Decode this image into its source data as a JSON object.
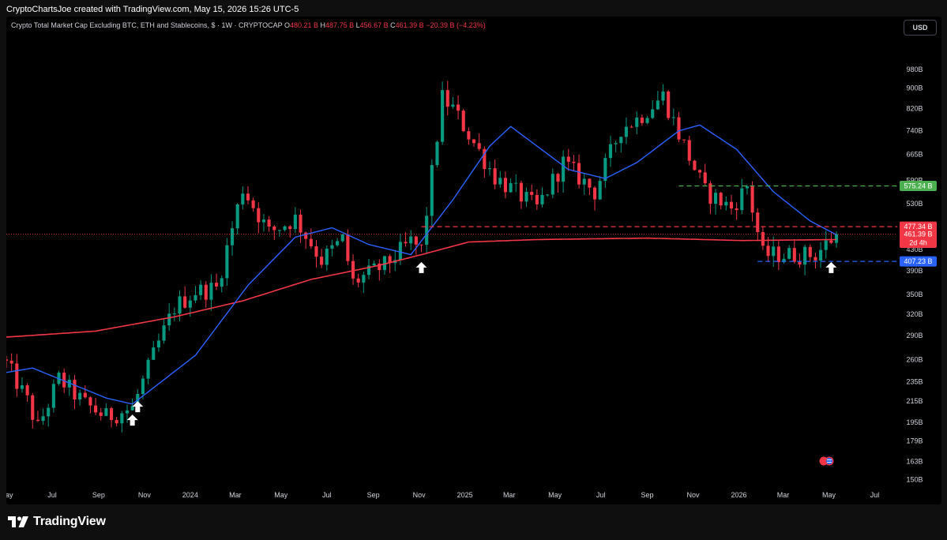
{
  "header": {
    "credit": "CryptoChartsJoe created with TradingView.com, May 15, 2026 15:26 UTC-5"
  },
  "legend": {
    "title": "Crypto Total Market Cap Excluding BTC, ETH and Stablecoins, $ · 1W · CRYPTOCAP",
    "open_label": "O",
    "open": "480.21 B",
    "high_label": "H",
    "high": "487.75 B",
    "low_label": "L",
    "low": "456.67 B",
    "close_label": "C",
    "close": "461.39 B",
    "change": "−20.39 B (−4.23%)"
  },
  "currency_button": {
    "label": "USD"
  },
  "footer": {
    "brand": "TradingView",
    "logo_icon": "tradingview-logo-icon"
  },
  "colors": {
    "up": "#089981",
    "down": "#f23645",
    "ma_fast": "#2962ff",
    "ma_slow": "#f23645",
    "green_level": "#4caf50",
    "red_level": "#f23645",
    "blue_level": "#2962ff",
    "background": "#000000",
    "frame": "#0f0f0f"
  },
  "chart_data": {
    "type": "candlestick",
    "title": "Crypto Total Market Cap Excluding BTC, ETH and Stablecoins, $ · 1W · CRYPTOCAP",
    "y_scale": "log",
    "y_unit": "B",
    "ylim": [
      145,
      1120
    ],
    "y_ticks": [
      {
        "v": 150,
        "label": "150B"
      },
      {
        "v": 163,
        "label": "163B"
      },
      {
        "v": 179,
        "label": "179B"
      },
      {
        "v": 195,
        "label": "195B"
      },
      {
        "v": 215,
        "label": "215B"
      },
      {
        "v": 235,
        "label": "235B"
      },
      {
        "v": 260,
        "label": "260B"
      },
      {
        "v": 290,
        "label": "290B"
      },
      {
        "v": 320,
        "label": "320B"
      },
      {
        "v": 350,
        "label": "350B"
      },
      {
        "v": 390,
        "label": "390B"
      },
      {
        "v": 430,
        "label": "430B"
      },
      {
        "v": 530,
        "label": "530B"
      },
      {
        "v": 590,
        "label": "590B"
      },
      {
        "v": 665,
        "label": "665B"
      },
      {
        "v": 740,
        "label": "740B"
      },
      {
        "v": 820,
        "label": "820B"
      },
      {
        "v": 900,
        "label": "900B"
      },
      {
        "v": 980,
        "label": "980B"
      }
    ],
    "x_start": "2023-05-01",
    "x_end": "2026-07-31",
    "x_ticks": [
      {
        "date": "2023-05-01",
        "label": "May"
      },
      {
        "date": "2023-07-01",
        "label": "Jul"
      },
      {
        "date": "2023-09-01",
        "label": "Sep"
      },
      {
        "date": "2023-11-01",
        "label": "Nov"
      },
      {
        "date": "2024-01-01",
        "label": "2024"
      },
      {
        "date": "2024-03-01",
        "label": "Mar"
      },
      {
        "date": "2024-05-01",
        "label": "May"
      },
      {
        "date": "2024-07-01",
        "label": "Jul"
      },
      {
        "date": "2024-09-01",
        "label": "Sep"
      },
      {
        "date": "2024-11-01",
        "label": "Nov"
      },
      {
        "date": "2025-01-01",
        "label": "2025"
      },
      {
        "date": "2025-03-01",
        "label": "Mar"
      },
      {
        "date": "2025-05-01",
        "label": "May"
      },
      {
        "date": "2025-07-01",
        "label": "Jul"
      },
      {
        "date": "2025-09-01",
        "label": "Sep"
      },
      {
        "date": "2025-11-01",
        "label": "Nov"
      },
      {
        "date": "2026-01-01",
        "label": "2026"
      },
      {
        "date": "2026-03-01",
        "label": "Mar"
      },
      {
        "date": "2026-05-01",
        "label": "May"
      },
      {
        "date": "2026-07-01",
        "label": "Jul"
      }
    ],
    "price_keypoints": [
      {
        "date": "2023-05-01",
        "close": 255
      },
      {
        "date": "2023-05-29",
        "close": 215
      },
      {
        "date": "2023-06-12",
        "close": 190
      },
      {
        "date": "2023-07-10",
        "close": 238
      },
      {
        "date": "2023-08-14",
        "close": 212
      },
      {
        "date": "2023-09-11",
        "close": 200
      },
      {
        "date": "2023-10-16",
        "close": 208
      },
      {
        "date": "2023-11-13",
        "close": 265
      },
      {
        "date": "2023-12-11",
        "close": 330
      },
      {
        "date": "2024-01-08",
        "close": 355
      },
      {
        "date": "2024-02-05",
        "close": 360
      },
      {
        "date": "2024-03-11",
        "close": 570
      },
      {
        "date": "2024-04-15",
        "close": 465
      },
      {
        "date": "2024-05-20",
        "close": 495
      },
      {
        "date": "2024-06-24",
        "close": 410
      },
      {
        "date": "2024-07-22",
        "close": 450
      },
      {
        "date": "2024-08-05",
        "close": 370
      },
      {
        "date": "2024-09-16",
        "close": 400
      },
      {
        "date": "2024-10-21",
        "close": 445
      },
      {
        "date": "2024-11-04",
        "close": 430
      },
      {
        "date": "2024-12-02",
        "close": 860
      },
      {
        "date": "2024-12-16",
        "close": 820
      },
      {
        "date": "2025-01-13",
        "close": 700
      },
      {
        "date": "2025-02-10",
        "close": 600
      },
      {
        "date": "2025-04-07",
        "close": 520
      },
      {
        "date": "2025-05-12",
        "close": 640
      },
      {
        "date": "2025-06-23",
        "close": 560
      },
      {
        "date": "2025-07-28",
        "close": 750
      },
      {
        "date": "2025-08-18",
        "close": 780
      },
      {
        "date": "2025-09-22",
        "close": 870
      },
      {
        "date": "2025-10-13",
        "close": 730
      },
      {
        "date": "2025-11-17",
        "close": 560
      },
      {
        "date": "2025-12-22",
        "close": 520
      },
      {
        "date": "2026-01-12",
        "close": 575
      },
      {
        "date": "2026-02-02",
        "close": 420
      },
      {
        "date": "2026-03-09",
        "close": 420
      },
      {
        "date": "2026-04-13",
        "close": 420
      },
      {
        "date": "2026-05-11",
        "close": 461.39
      }
    ],
    "ma_fast_keypoints": [
      {
        "date": "2023-05-01",
        "v": 245
      },
      {
        "date": "2023-06-05",
        "v": 250
      },
      {
        "date": "2023-09-11",
        "v": 218
      },
      {
        "date": "2023-10-16",
        "v": 212
      },
      {
        "date": "2024-01-08",
        "v": 265
      },
      {
        "date": "2024-03-18",
        "v": 365
      },
      {
        "date": "2024-05-20",
        "v": 455
      },
      {
        "date": "2024-07-08",
        "v": 475
      },
      {
        "date": "2024-08-26",
        "v": 440
      },
      {
        "date": "2024-10-21",
        "v": 420
      },
      {
        "date": "2024-12-16",
        "v": 540
      },
      {
        "date": "2025-02-03",
        "v": 690
      },
      {
        "date": "2025-03-03",
        "v": 755
      },
      {
        "date": "2025-04-07",
        "v": 690
      },
      {
        "date": "2025-05-19",
        "v": 620
      },
      {
        "date": "2025-07-07",
        "v": 595
      },
      {
        "date": "2025-08-18",
        "v": 640
      },
      {
        "date": "2025-10-13",
        "v": 740
      },
      {
        "date": "2025-11-10",
        "v": 760
      },
      {
        "date": "2025-12-29",
        "v": 680
      },
      {
        "date": "2026-02-16",
        "v": 560
      },
      {
        "date": "2026-04-06",
        "v": 490
      },
      {
        "date": "2026-05-11",
        "v": 460
      }
    ],
    "ma_slow_keypoints": [
      {
        "date": "2023-05-01",
        "v": 288
      },
      {
        "date": "2023-08-28",
        "v": 296
      },
      {
        "date": "2023-12-11",
        "v": 316
      },
      {
        "date": "2024-03-11",
        "v": 340
      },
      {
        "date": "2024-06-10",
        "v": 375
      },
      {
        "date": "2024-09-09",
        "v": 400
      },
      {
        "date": "2024-11-04",
        "v": 420
      },
      {
        "date": "2025-01-06",
        "v": 445
      },
      {
        "date": "2025-04-07",
        "v": 450
      },
      {
        "date": "2025-09-01",
        "v": 453
      },
      {
        "date": "2026-01-05",
        "v": 448
      },
      {
        "date": "2026-05-11",
        "v": 450
      }
    ],
    "levels": [
      {
        "name": "green",
        "value": 575.24,
        "label": "575.24 B",
        "start": "2025-10-13",
        "style": "dashed"
      },
      {
        "name": "red",
        "value": 477.34,
        "label": "477.34 B",
        "start": "2024-11-04",
        "style": "dashed"
      },
      {
        "name": "blue",
        "value": 407.23,
        "label": "407.23 B",
        "start": "2026-01-26",
        "style": "dashed"
      }
    ],
    "last_price": {
      "value": 461.39,
      "label": "461.39 B",
      "countdown": "2d 4h"
    },
    "arrows": [
      {
        "date": "2023-10-16",
        "at": 205
      },
      {
        "date": "2023-10-23",
        "at": 218
      },
      {
        "date": "2024-11-04",
        "at": 412
      },
      {
        "date": "2026-05-04",
        "at": 412
      }
    ],
    "grid": false
  }
}
